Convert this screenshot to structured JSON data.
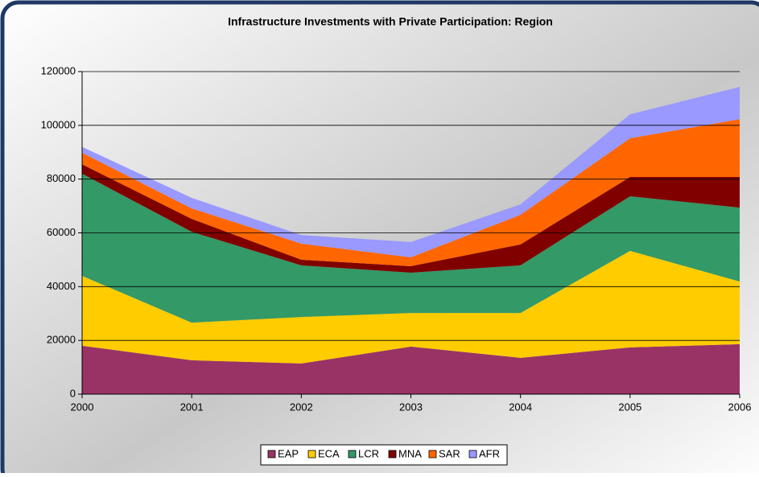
{
  "chart_data": {
    "type": "stacked_area",
    "title": "Infrastructure Investments with Private Participation: Region",
    "categories": [
      "2000",
      "2001",
      "2002",
      "2003",
      "2004",
      "2005",
      "2006"
    ],
    "series": [
      {
        "name": "EAP",
        "color": "#993366",
        "values": [
          18000,
          12600,
          11400,
          17700,
          13500,
          17400,
          18600
        ]
      },
      {
        "name": "ECA",
        "color": "#ffcc00",
        "values": [
          26000,
          14000,
          17300,
          12500,
          16700,
          35900,
          23300
        ]
      },
      {
        "name": "LCR",
        "color": "#339966",
        "values": [
          38000,
          33800,
          19200,
          15000,
          17700,
          20300,
          27500
        ]
      },
      {
        "name": "MNA",
        "color": "#800000",
        "values": [
          3500,
          4800,
          2100,
          2400,
          7800,
          7200,
          11400
        ]
      },
      {
        "name": "SAR",
        "color": "#ff6600",
        "values": [
          4300,
          3900,
          6000,
          3300,
          11000,
          14400,
          21500
        ]
      },
      {
        "name": "AFR",
        "color": "#9999ff",
        "values": [
          2200,
          3900,
          3200,
          5700,
          3900,
          8900,
          12000
        ]
      }
    ],
    "ylim": [
      0,
      120000
    ],
    "yticks": [
      0,
      20000,
      40000,
      60000,
      80000,
      100000,
      120000
    ],
    "grid": true
  }
}
